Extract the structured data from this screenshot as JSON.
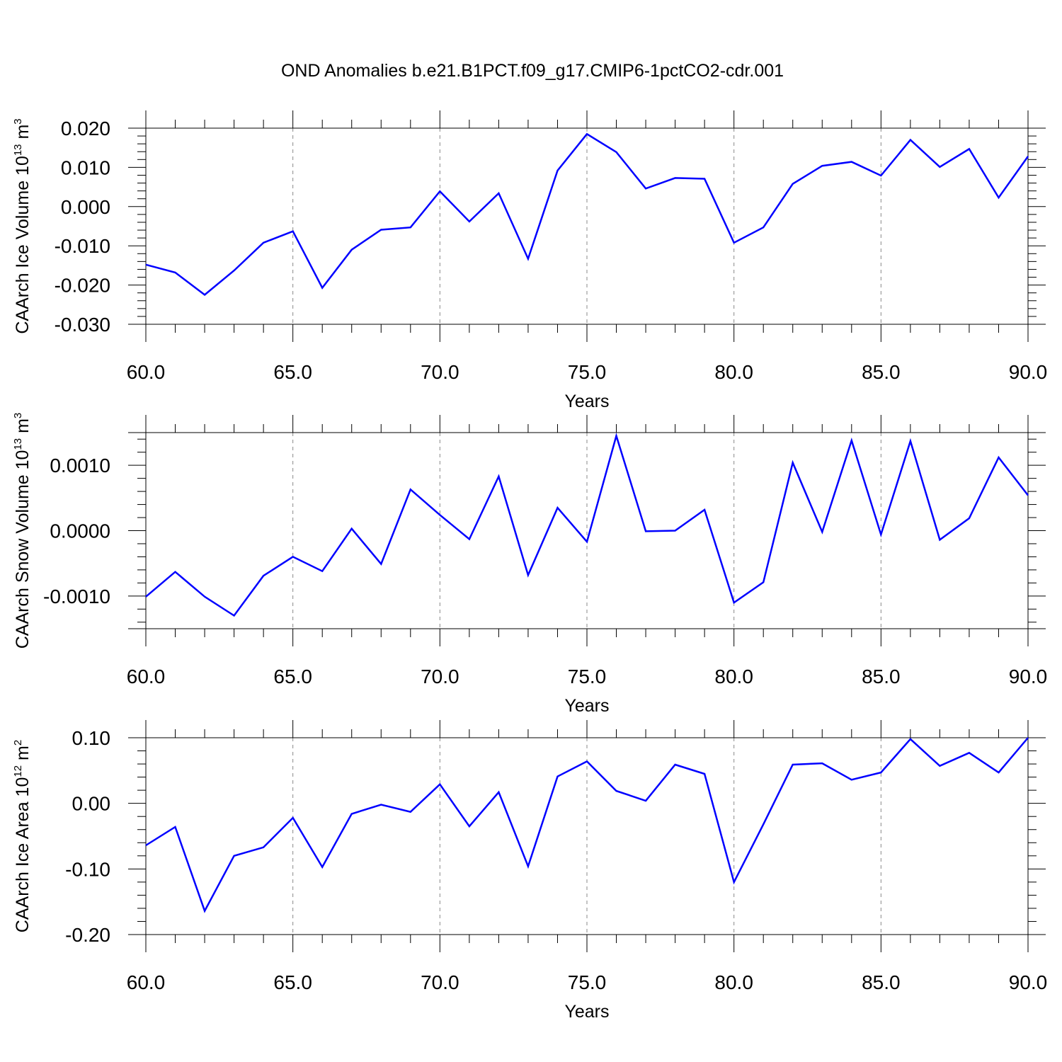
{
  "title": "OND Anomalies b.e21.B1PCT.f09_g17.CMIP6-1pctCO2-cdr.001",
  "colors": {
    "line": "#0000ff",
    "axis": "#000000",
    "grid": "#888888"
  },
  "chart_data": [
    {
      "type": "line",
      "id": "ice-volume",
      "xlabel": "Years",
      "ylabel": {
        "text": "CAArch Ice Volume 10",
        "sup1": "13",
        "unit": " m",
        "sup2": "3"
      },
      "xlim": [
        60,
        90
      ],
      "ylim": [
        -0.03,
        0.02
      ],
      "xticks": [
        60,
        65,
        70,
        75,
        80,
        85,
        90
      ],
      "xtick_labels": [
        "60.0",
        "65.0",
        "70.0",
        "75.0",
        "80.0",
        "85.0",
        "90.0"
      ],
      "yticks": [
        -0.03,
        -0.02,
        -0.01,
        0.0,
        0.01,
        0.02
      ],
      "ytick_labels": [
        "-0.030",
        "-0.020",
        "-0.010",
        "0.000",
        "0.010",
        "0.020"
      ],
      "grid": "dashed vertical at major x ticks",
      "x": [
        60,
        61,
        62,
        63,
        64,
        65,
        66,
        67,
        68,
        69,
        70,
        71,
        72,
        73,
        74,
        75,
        76,
        77,
        78,
        79,
        80,
        81,
        82,
        83,
        84,
        85,
        86,
        87,
        88,
        89,
        90
      ],
      "values": [
        -0.0148,
        -0.0168,
        -0.0225,
        -0.0163,
        -0.0092,
        -0.0063,
        -0.0207,
        -0.011,
        -0.0059,
        -0.0053,
        0.0039,
        -0.0038,
        0.0034,
        -0.0133,
        0.0092,
        0.0185,
        0.0139,
        0.0046,
        0.0073,
        0.0071,
        -0.0092,
        -0.0053,
        0.0058,
        0.0104,
        0.0114,
        0.0079,
        0.017,
        0.0101,
        0.0147,
        0.0023,
        0.0128
      ]
    },
    {
      "type": "line",
      "id": "snow-volume",
      "xlabel": "Years",
      "ylabel": {
        "text": "CAArch Snow Volume 10",
        "sup1": "13",
        "unit": " m",
        "sup2": "3"
      },
      "xlim": [
        60,
        90
      ],
      "ylim": [
        -0.0015,
        0.0015
      ],
      "xticks": [
        60,
        65,
        70,
        75,
        80,
        85,
        90
      ],
      "xtick_labels": [
        "60.0",
        "65.0",
        "70.0",
        "75.0",
        "80.0",
        "85.0",
        "90.0"
      ],
      "yticks": [
        -0.001,
        0.0,
        0.001
      ],
      "ytick_labels": [
        "-0.0010",
        "0.0000",
        "0.0010"
      ],
      "grid": "dashed vertical at major x ticks",
      "x": [
        60,
        61,
        62,
        63,
        64,
        65,
        66,
        67,
        68,
        69,
        70,
        71,
        72,
        73,
        74,
        75,
        76,
        77,
        78,
        79,
        80,
        81,
        82,
        83,
        84,
        85,
        86,
        87,
        88,
        89,
        90
      ],
      "values": [
        -0.00101,
        -0.00063,
        -0.00101,
        -0.0013,
        -0.00069,
        -0.0004,
        -0.00062,
        3e-05,
        -0.00051,
        0.00063,
        0.00024,
        -0.00013,
        0.00083,
        -0.00068,
        0.00035,
        -0.00017,
        0.00145,
        -1e-05,
        0.0,
        0.00032,
        -0.0011,
        -0.00079,
        0.00104,
        -2e-05,
        0.00138,
        -6e-05,
        0.00137,
        -0.00014,
        0.00019,
        0.00112,
        0.00054
      ]
    },
    {
      "type": "line",
      "id": "ice-area",
      "xlabel": "Years",
      "ylabel": {
        "text": "CAArch Ice Area 10",
        "sup1": "12",
        "unit": " m",
        "sup2": "2"
      },
      "xlim": [
        60,
        90
      ],
      "ylim": [
        -0.2,
        0.1
      ],
      "xticks": [
        60,
        65,
        70,
        75,
        80,
        85,
        90
      ],
      "xtick_labels": [
        "60.0",
        "65.0",
        "70.0",
        "75.0",
        "80.0",
        "85.0",
        "90.0"
      ],
      "yticks": [
        -0.2,
        -0.1,
        0.0,
        0.1
      ],
      "ytick_labels": [
        "-0.20",
        "-0.10",
        "0.00",
        "0.10"
      ],
      "grid": "dashed vertical at major x ticks",
      "x": [
        60,
        61,
        62,
        63,
        64,
        65,
        66,
        67,
        68,
        69,
        70,
        71,
        72,
        73,
        74,
        75,
        76,
        77,
        78,
        79,
        80,
        81,
        82,
        83,
        84,
        85,
        86,
        87,
        88,
        89,
        90
      ],
      "values": [
        -0.064,
        -0.036,
        -0.164,
        -0.08,
        -0.067,
        -0.022,
        -0.097,
        -0.016,
        -0.002,
        -0.013,
        0.029,
        -0.035,
        0.017,
        -0.096,
        0.041,
        0.064,
        0.019,
        0.004,
        0.059,
        0.045,
        -0.12,
        -0.032,
        0.059,
        0.061,
        0.036,
        0.047,
        0.098,
        0.057,
        0.077,
        0.047,
        0.1
      ]
    }
  ]
}
